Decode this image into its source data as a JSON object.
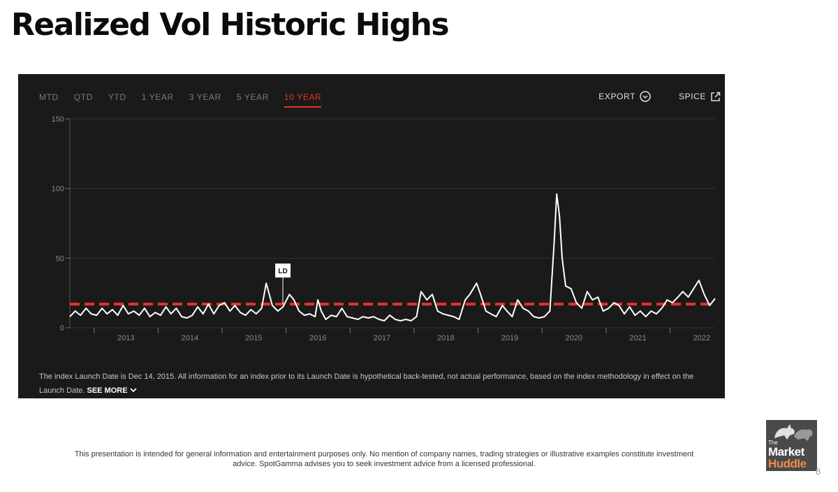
{
  "slide": {
    "title": "Realized Vol Historic Highs",
    "footer_note": "This presentation is intended for general information and entertainment purposes only.  No mention of company names, trading strategies or illustrative examples constitute investment advice.  SpotGamma advises you to seek investment advice from a licensed professional.",
    "page_number": "8"
  },
  "logo": {
    "line1": "The",
    "line2": "Market",
    "line3": "Huddle",
    "icon": "bull-bear-icon"
  },
  "widget": {
    "tabs": [
      {
        "label": "MTD",
        "active": false
      },
      {
        "label": "QTD",
        "active": false
      },
      {
        "label": "YTD",
        "active": false
      },
      {
        "label": "1 YEAR",
        "active": false
      },
      {
        "label": "3 YEAR",
        "active": false
      },
      {
        "label": "5 YEAR",
        "active": false
      },
      {
        "label": "10 YEAR",
        "active": true
      }
    ],
    "export_label": "EXPORT",
    "export_icon": "chevron-down-circle-icon",
    "spice_label": "SPICE",
    "spice_icon": "external-link-icon",
    "disclaimer": "The index Launch Date is Dec 14, 2015. All information for an index prior to its Launch Date is hypothetical back-tested, not actual performance, based on the index methodology in effect on the Launch Date.",
    "see_more_label": "SEE MORE",
    "see_more_icon": "chevron-down-icon",
    "colors": {
      "panel_bg": "#1a1a1a",
      "line": "#ffffff",
      "reference": "#e8322a",
      "active_tab": "#e8322a"
    }
  },
  "chart_data": {
    "type": "line",
    "title": "",
    "xlabel": "",
    "ylabel": "",
    "ylim": [
      0,
      150
    ],
    "yticks": [
      0,
      50,
      100,
      150
    ],
    "xlim": [
      "2012-08-15",
      "2022-09-15"
    ],
    "xticks": [
      "2013",
      "2014",
      "2015",
      "2016",
      "2017",
      "2018",
      "2019",
      "2020",
      "2021",
      "2022"
    ],
    "grid": true,
    "reference_line": {
      "y": 17,
      "style": "dashed",
      "color": "#e8322a"
    },
    "annotations": [
      {
        "label": "LD",
        "x": "2015-12-14",
        "y": 17
      }
    ],
    "series": [
      {
        "color": "#ffffff",
        "points": [
          [
            "2012-08-15",
            8
          ],
          [
            "2012-09-15",
            12
          ],
          [
            "2012-10-15",
            9
          ],
          [
            "2012-11-15",
            14
          ],
          [
            "2012-12-15",
            10
          ],
          [
            "2013-01-15",
            9
          ],
          [
            "2013-02-15",
            14
          ],
          [
            "2013-03-15",
            10
          ],
          [
            "2013-04-15",
            13
          ],
          [
            "2013-05-15",
            9
          ],
          [
            "2013-06-15",
            16
          ],
          [
            "2013-07-15",
            10
          ],
          [
            "2013-08-15",
            12
          ],
          [
            "2013-09-15",
            9
          ],
          [
            "2013-10-15",
            14
          ],
          [
            "2013-11-15",
            8
          ],
          [
            "2013-12-15",
            11
          ],
          [
            "2014-01-15",
            9
          ],
          [
            "2014-02-15",
            15
          ],
          [
            "2014-03-15",
            10
          ],
          [
            "2014-04-15",
            14
          ],
          [
            "2014-05-15",
            8
          ],
          [
            "2014-06-15",
            7
          ],
          [
            "2014-07-15",
            9
          ],
          [
            "2014-08-15",
            15
          ],
          [
            "2014-09-15",
            10
          ],
          [
            "2014-10-15",
            17
          ],
          [
            "2014-11-15",
            10
          ],
          [
            "2014-12-15",
            16
          ],
          [
            "2015-01-15",
            18
          ],
          [
            "2015-02-15",
            12
          ],
          [
            "2015-03-15",
            16
          ],
          [
            "2015-04-15",
            11
          ],
          [
            "2015-05-15",
            9
          ],
          [
            "2015-06-15",
            13
          ],
          [
            "2015-07-15",
            10
          ],
          [
            "2015-08-15",
            14
          ],
          [
            "2015-09-10",
            32
          ],
          [
            "2015-10-15",
            16
          ],
          [
            "2015-11-15",
            12
          ],
          [
            "2015-12-15",
            15
          ],
          [
            "2016-01-20",
            24
          ],
          [
            "2016-02-15",
            20
          ],
          [
            "2016-03-15",
            12
          ],
          [
            "2016-04-15",
            9
          ],
          [
            "2016-05-15",
            10
          ],
          [
            "2016-06-15",
            8
          ],
          [
            "2016-07-01",
            20
          ],
          [
            "2016-07-20",
            12
          ],
          [
            "2016-08-15",
            6
          ],
          [
            "2016-09-15",
            9
          ],
          [
            "2016-10-15",
            8
          ],
          [
            "2016-11-15",
            14
          ],
          [
            "2016-12-15",
            8
          ],
          [
            "2017-01-15",
            7
          ],
          [
            "2017-02-15",
            6
          ],
          [
            "2017-03-15",
            8
          ],
          [
            "2017-04-15",
            7
          ],
          [
            "2017-05-15",
            8
          ],
          [
            "2017-06-15",
            6
          ],
          [
            "2017-07-15",
            5
          ],
          [
            "2017-08-15",
            9
          ],
          [
            "2017-09-15",
            6
          ],
          [
            "2017-10-15",
            5
          ],
          [
            "2017-11-15",
            6
          ],
          [
            "2017-12-15",
            5
          ],
          [
            "2018-01-15",
            8
          ],
          [
            "2018-02-10",
            26
          ],
          [
            "2018-03-15",
            20
          ],
          [
            "2018-04-15",
            24
          ],
          [
            "2018-05-15",
            12
          ],
          [
            "2018-06-15",
            10
          ],
          [
            "2018-07-15",
            9
          ],
          [
            "2018-08-15",
            8
          ],
          [
            "2018-09-15",
            6
          ],
          [
            "2018-10-20",
            20
          ],
          [
            "2018-11-15",
            24
          ],
          [
            "2018-12-24",
            32
          ],
          [
            "2019-01-15",
            24
          ],
          [
            "2019-02-15",
            12
          ],
          [
            "2019-03-15",
            10
          ],
          [
            "2019-04-15",
            8
          ],
          [
            "2019-05-20",
            16
          ],
          [
            "2019-06-15",
            12
          ],
          [
            "2019-07-15",
            8
          ],
          [
            "2019-08-15",
            20
          ],
          [
            "2019-09-15",
            14
          ],
          [
            "2019-10-15",
            12
          ],
          [
            "2019-11-15",
            8
          ],
          [
            "2019-12-15",
            7
          ],
          [
            "2020-01-15",
            8
          ],
          [
            "2020-02-15",
            12
          ],
          [
            "2020-03-10",
            60
          ],
          [
            "2020-03-25",
            96
          ],
          [
            "2020-04-10",
            80
          ],
          [
            "2020-04-25",
            50
          ],
          [
            "2020-05-15",
            30
          ],
          [
            "2020-06-15",
            28
          ],
          [
            "2020-07-15",
            18
          ],
          [
            "2020-08-15",
            14
          ],
          [
            "2020-09-15",
            26
          ],
          [
            "2020-10-15",
            20
          ],
          [
            "2020-11-15",
            22
          ],
          [
            "2020-12-15",
            12
          ],
          [
            "2021-01-15",
            14
          ],
          [
            "2021-02-15",
            18
          ],
          [
            "2021-03-15",
            16
          ],
          [
            "2021-04-15",
            10
          ],
          [
            "2021-05-15",
            15
          ],
          [
            "2021-06-15",
            9
          ],
          [
            "2021-07-15",
            12
          ],
          [
            "2021-08-15",
            8
          ],
          [
            "2021-09-15",
            12
          ],
          [
            "2021-10-15",
            10
          ],
          [
            "2021-11-15",
            14
          ],
          [
            "2021-12-15",
            20
          ],
          [
            "2022-01-15",
            18
          ],
          [
            "2022-02-15",
            22
          ],
          [
            "2022-03-15",
            26
          ],
          [
            "2022-04-15",
            22
          ],
          [
            "2022-05-15",
            28
          ],
          [
            "2022-06-15",
            34
          ],
          [
            "2022-07-15",
            24
          ],
          [
            "2022-08-15",
            16
          ],
          [
            "2022-09-15",
            21
          ]
        ]
      }
    ]
  }
}
